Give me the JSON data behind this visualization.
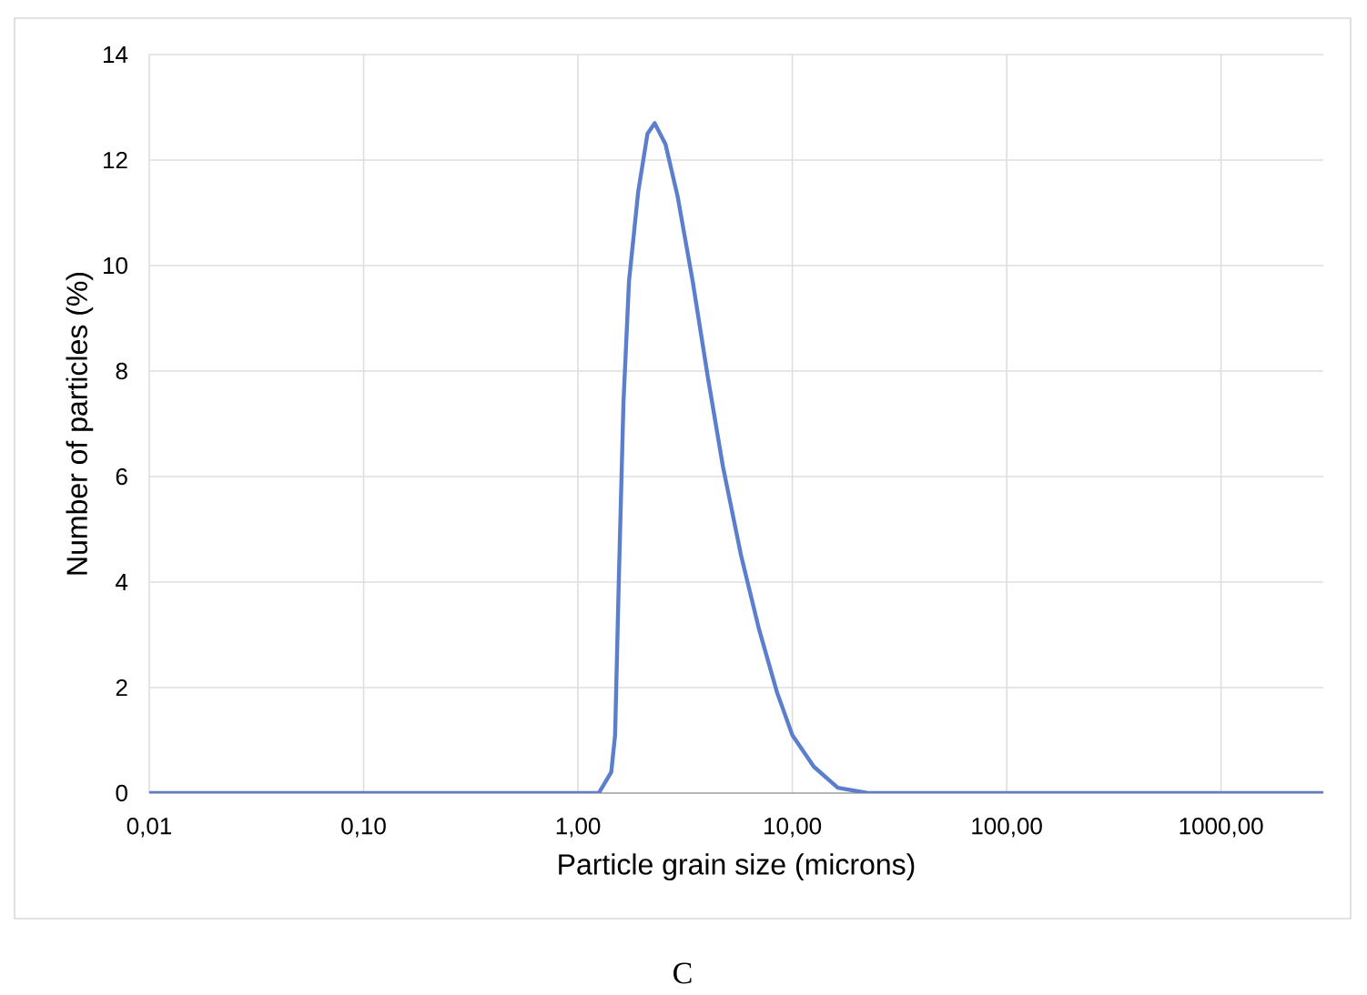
{
  "chart_data": {
    "type": "line",
    "xlabel": "Particle grain size (microns)",
    "ylabel": "Number of particles (%)",
    "annotations": [
      "C"
    ],
    "log": "x",
    "grid": true,
    "marker": "none",
    "line_style": "solid",
    "xlim": [
      0.01,
      3000
    ],
    "ylim": [
      0,
      14
    ],
    "xticks": [
      {
        "value": 0.01,
        "label": "0,01"
      },
      {
        "value": 0.1,
        "label": "0,10"
      },
      {
        "value": 1,
        "label": "1,00"
      },
      {
        "value": 10,
        "label": "10,00"
      },
      {
        "value": 100,
        "label": "100,00"
      },
      {
        "value": 1000,
        "label": "1000,00"
      }
    ],
    "yticks": [
      0,
      2,
      4,
      6,
      8,
      10,
      12,
      14
    ],
    "series": [
      {
        "color": "#5b7fcc",
        "x": [
          0.01,
          1.25,
          1.43,
          1.49,
          1.55,
          1.63,
          1.73,
          1.91,
          2.11,
          2.28,
          2.56,
          2.92,
          3.43,
          4.03,
          4.74,
          5.77,
          7.0,
          8.5,
          10,
          12.6,
          16.3,
          22.5,
          3000
        ],
        "values": [
          0,
          0,
          0.4,
          1.1,
          4.0,
          7.4,
          9.7,
          11.4,
          12.5,
          12.7,
          12.3,
          11.3,
          9.7,
          7.9,
          6.2,
          4.5,
          3.1,
          1.9,
          1.1,
          0.5,
          0.1,
          0,
          0
        ]
      }
    ]
  }
}
